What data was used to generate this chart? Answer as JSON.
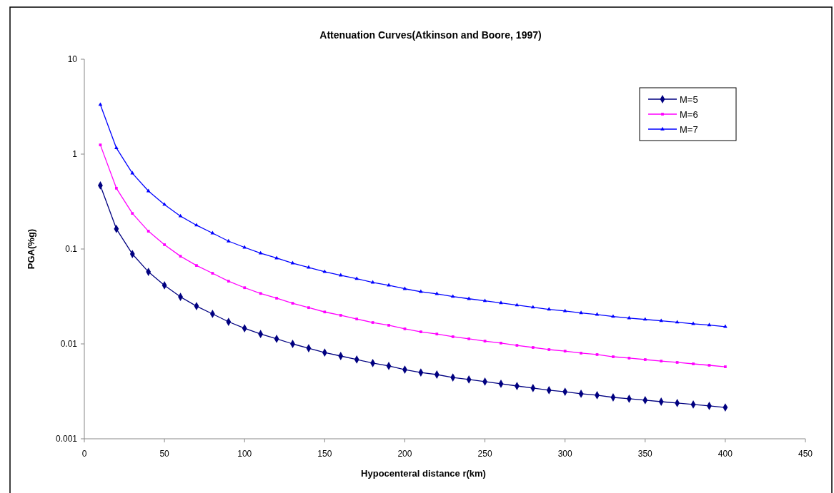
{
  "chart_data": {
    "type": "line",
    "title": "Attenuation Curves(Atkinson and Boore, 1997)",
    "xlabel": "Hypocenteral distance r(km)",
    "ylabel": "PGA(%g)",
    "x": [
      10,
      20,
      30,
      40,
      50,
      60,
      70,
      80,
      90,
      100,
      110,
      120,
      130,
      140,
      150,
      160,
      170,
      180,
      190,
      200,
      210,
      220,
      230,
      240,
      250,
      260,
      270,
      280,
      290,
      300,
      310,
      320,
      330,
      340,
      350,
      360,
      370,
      380,
      390,
      400
    ],
    "series": [
      {
        "name": "M=5",
        "color": "#000080",
        "marker": "diamond",
        "values": [
          0.467,
          0.163,
          0.0885,
          0.0574,
          0.0414,
          0.0313,
          0.025,
          0.0207,
          0.0171,
          0.0146,
          0.0127,
          0.0113,
          0.01,
          0.009,
          0.0081,
          0.00745,
          0.00684,
          0.00627,
          0.00585,
          0.00536,
          0.005,
          0.00475,
          0.00443,
          0.00421,
          0.004,
          0.0038,
          0.0036,
          0.00342,
          0.00325,
          0.00313,
          0.00298,
          0.00288,
          0.00273,
          0.00264,
          0.00255,
          0.00246,
          0.00238,
          0.0023,
          0.00222,
          0.00214
        ]
      },
      {
        "name": "M=6",
        "color": "#ff00ff",
        "marker": "square",
        "values": [
          1.25,
          0.437,
          0.237,
          0.154,
          0.111,
          0.0839,
          0.067,
          0.0555,
          0.0458,
          0.0391,
          0.034,
          0.0303,
          0.0268,
          0.0241,
          0.0217,
          0.02,
          0.0183,
          0.0168,
          0.0157,
          0.0144,
          0.0134,
          0.0127,
          0.0119,
          0.0113,
          0.0107,
          0.0102,
          0.00965,
          0.00917,
          0.00871,
          0.00839,
          0.00799,
          0.00772,
          0.00732,
          0.00708,
          0.00683,
          0.00659,
          0.00638,
          0.00616,
          0.00595,
          0.00574
        ]
      },
      {
        "name": "M=7",
        "color": "#0000ff",
        "marker": "triangle",
        "values": [
          3.32,
          1.16,
          0.628,
          0.408,
          0.294,
          0.222,
          0.178,
          0.147,
          0.121,
          0.104,
          0.0902,
          0.0802,
          0.071,
          0.0639,
          0.0575,
          0.0529,
          0.0486,
          0.0445,
          0.0415,
          0.0381,
          0.0355,
          0.0337,
          0.0315,
          0.0299,
          0.0284,
          0.027,
          0.0256,
          0.0243,
          0.0231,
          0.0222,
          0.0212,
          0.0204,
          0.0194,
          0.0187,
          0.0181,
          0.0175,
          0.0169,
          0.0163,
          0.0158,
          0.0152
        ]
      }
    ],
    "xlim": [
      0,
      450
    ],
    "xticks": [
      0,
      50,
      100,
      150,
      200,
      250,
      300,
      350,
      400,
      450
    ],
    "ylim": [
      0.001,
      10
    ],
    "yticks": [
      0.001,
      0.01,
      0.1,
      1,
      10
    ],
    "log": "y",
    "grid": false,
    "legend": "top right",
    "line_style": "solid"
  }
}
